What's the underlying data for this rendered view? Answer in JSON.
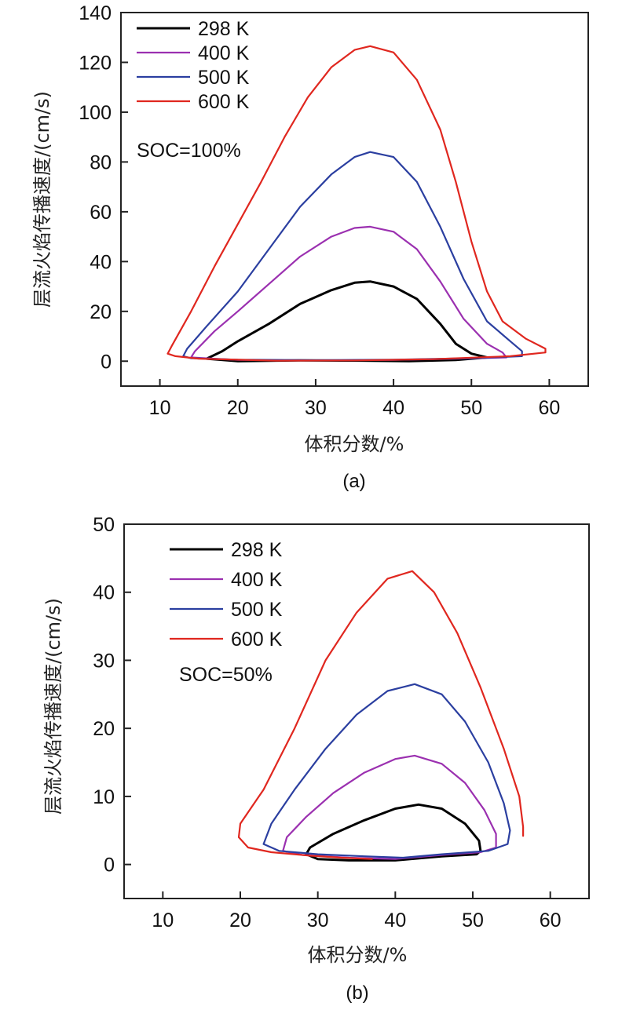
{
  "chart_data": [
    {
      "type": "line",
      "panel": "(a)",
      "title": "",
      "annotation": "SOC=100%",
      "xlabel": "体积分数/%",
      "ylabel": "层流火焰传播速度/(cm/s)",
      "xlim": [
        5,
        65
      ],
      "ylim": [
        -10,
        140
      ],
      "xticks": [
        10,
        20,
        30,
        40,
        50,
        60
      ],
      "yticks": [
        0,
        20,
        40,
        60,
        80,
        100,
        120,
        140
      ],
      "grid": false,
      "legend": "top-left",
      "series": [
        {
          "name": "298 K",
          "color": "#000000",
          "points": [
            [
              16,
              1
            ],
            [
              18,
              4
            ],
            [
              20,
              8
            ],
            [
              24,
              15
            ],
            [
              28,
              23
            ],
            [
              32,
              28.5
            ],
            [
              35,
              31.5
            ],
            [
              37,
              32
            ],
            [
              40,
              30
            ],
            [
              43,
              25
            ],
            [
              46,
              15
            ],
            [
              48,
              7
            ],
            [
              50,
              3
            ],
            [
              52,
              1.5
            ],
            [
              48,
              0.5
            ],
            [
              42,
              0
            ],
            [
              36,
              0.2
            ],
            [
              28,
              0.3
            ],
            [
              20,
              0
            ],
            [
              16,
              1
            ]
          ]
        },
        {
          "name": "400 K",
          "color": "#9b30b0",
          "points": [
            [
              14,
              1.5
            ],
            [
              14.5,
              4
            ],
            [
              17,
              12
            ],
            [
              20,
              20
            ],
            [
              24,
              31
            ],
            [
              28,
              42
            ],
            [
              32,
              50
            ],
            [
              35,
              53.5
            ],
            [
              37,
              54
            ],
            [
              40,
              52
            ],
            [
              43,
              45
            ],
            [
              46,
              32
            ],
            [
              49,
              17
            ],
            [
              52,
              7
            ],
            [
              54,
              3.5
            ],
            [
              54.5,
              1.5
            ],
            [
              48,
              1
            ],
            [
              40,
              0.5
            ],
            [
              30,
              0.3
            ],
            [
              20,
              0.5
            ],
            [
              14,
              1.5
            ]
          ]
        },
        {
          "name": "500 K",
          "color": "#2b3fa0",
          "points": [
            [
              13,
              2
            ],
            [
              13.5,
              5
            ],
            [
              16,
              14
            ],
            [
              20,
              28
            ],
            [
              24,
              45
            ],
            [
              28,
              62
            ],
            [
              32,
              75
            ],
            [
              35,
              82
            ],
            [
              37,
              84
            ],
            [
              40,
              82
            ],
            [
              43,
              72
            ],
            [
              46,
              54
            ],
            [
              49,
              33
            ],
            [
              52,
              16
            ],
            [
              55,
              8
            ],
            [
              56.5,
              4
            ],
            [
              56.5,
              2
            ],
            [
              50,
              1.2
            ],
            [
              40,
              0.6
            ],
            [
              30,
              0.4
            ],
            [
              20,
              0.6
            ],
            [
              14,
              1.2
            ],
            [
              13,
              2
            ]
          ]
        },
        {
          "name": "600 K",
          "color": "#e0271f",
          "points": [
            [
              11,
              3
            ],
            [
              11.5,
              6
            ],
            [
              14,
              20
            ],
            [
              17,
              38
            ],
            [
              20,
              55
            ],
            [
              23,
              72
            ],
            [
              26,
              90
            ],
            [
              29,
              106
            ],
            [
              32,
              118
            ],
            [
              35,
              125
            ],
            [
              37,
              126.5
            ],
            [
              40,
              124
            ],
            [
              43,
              113
            ],
            [
              46,
              93
            ],
            [
              48,
              72
            ],
            [
              50,
              48
            ],
            [
              52,
              28
            ],
            [
              54,
              16
            ],
            [
              57,
              9
            ],
            [
              59.5,
              5
            ],
            [
              59.5,
              3.5
            ],
            [
              55,
              2
            ],
            [
              45,
              0.8
            ],
            [
              35,
              0.3
            ],
            [
              25,
              0.2
            ],
            [
              15,
              1
            ],
            [
              12,
              2
            ],
            [
              11,
              3
            ]
          ]
        }
      ]
    },
    {
      "type": "line",
      "panel": "(b)",
      "title": "",
      "annotation": "SOC=50%",
      "xlabel": "体积分数/%",
      "ylabel": "层流火焰传播速度/(cm/s)",
      "xlim": [
        5,
        65
      ],
      "ylim": [
        -5,
        50
      ],
      "xticks": [
        10,
        20,
        30,
        40,
        50,
        60
      ],
      "yticks": [
        0,
        10,
        20,
        30,
        40,
        50
      ],
      "grid": false,
      "legend": "top-center",
      "series": [
        {
          "name": "298 K",
          "color": "#000000",
          "points": [
            [
              28.5,
              1.5
            ],
            [
              29,
              2.5
            ],
            [
              32,
              4.5
            ],
            [
              36,
              6.5
            ],
            [
              40,
              8.2
            ],
            [
              43,
              8.8
            ],
            [
              46,
              8.2
            ],
            [
              49,
              6
            ],
            [
              50.8,
              3.5
            ],
            [
              51,
              2
            ],
            [
              50.5,
              1.5
            ],
            [
              46,
              1.2
            ],
            [
              40,
              0.6
            ],
            [
              34,
              0.6
            ],
            [
              30,
              0.8
            ],
            [
              28.5,
              1.5
            ]
          ]
        },
        {
          "name": "400 K",
          "color": "#9b30b0",
          "points": [
            [
              25.5,
              2
            ],
            [
              26,
              4
            ],
            [
              28.5,
              7
            ],
            [
              32,
              10.5
            ],
            [
              36,
              13.5
            ],
            [
              40,
              15.5
            ],
            [
              42.5,
              16
            ],
            [
              46,
              14.8
            ],
            [
              49,
              12
            ],
            [
              51.5,
              8
            ],
            [
              53,
              4.5
            ],
            [
              53,
              2.5
            ],
            [
              51,
              1.8
            ],
            [
              46,
              1.4
            ],
            [
              40,
              0.8
            ],
            [
              34,
              1
            ],
            [
              28,
              1.4
            ],
            [
              25.5,
              2
            ]
          ]
        },
        {
          "name": "500 K",
          "color": "#2b3fa0",
          "points": [
            [
              23,
              3
            ],
            [
              24,
              6
            ],
            [
              27,
              11
            ],
            [
              31,
              17
            ],
            [
              35,
              22
            ],
            [
              39,
              25.5
            ],
            [
              42.5,
              26.5
            ],
            [
              46,
              25
            ],
            [
              49,
              21
            ],
            [
              52,
              15
            ],
            [
              54,
              9
            ],
            [
              54.8,
              5
            ],
            [
              54.5,
              3
            ],
            [
              52,
              2
            ],
            [
              46,
              1.5
            ],
            [
              41,
              1
            ],
            [
              36,
              1.2
            ],
            [
              30,
              1.5
            ],
            [
              25,
              2
            ],
            [
              23,
              3
            ]
          ]
        },
        {
          "name": "600 K",
          "color": "#e0271f",
          "points": [
            [
              56.5,
              4.2
            ],
            [
              56.5,
              5.5
            ],
            [
              56,
              10
            ],
            [
              54,
              17
            ],
            [
              51,
              26
            ],
            [
              48,
              34
            ],
            [
              45,
              40
            ],
            [
              42.2,
              43.1
            ],
            [
              39,
              42
            ],
            [
              35,
              37
            ],
            [
              31,
              30
            ],
            [
              27,
              20
            ],
            [
              23,
              11
            ],
            [
              20,
              6
            ],
            [
              19.8,
              4
            ],
            [
              21,
              2.5
            ],
            [
              24,
              1.8
            ],
            [
              29,
              1.3
            ],
            [
              33,
              1
            ],
            [
              37,
              0.8
            ]
          ]
        }
      ]
    }
  ]
}
